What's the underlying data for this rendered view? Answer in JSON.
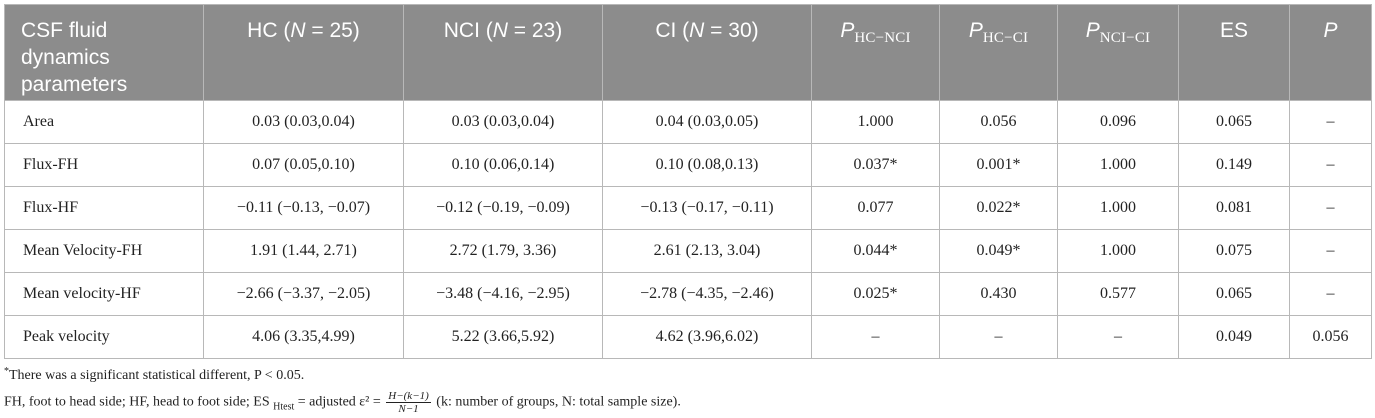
{
  "table": {
    "headers": [
      {
        "key": "param",
        "plain": "CSF fluid dynamics parameters"
      },
      {
        "key": "hc",
        "pre": "HC (",
        "italic": "N",
        "post": " = 25)"
      },
      {
        "key": "nci",
        "pre": "NCI (",
        "italic": "N",
        "post": " = 23)"
      },
      {
        "key": "ci",
        "pre": "CI (",
        "italic": "N",
        "post": " = 30)"
      },
      {
        "key": "p_hc_nci",
        "italic": "P",
        "sub": "HC−NCI"
      },
      {
        "key": "p_hc_ci",
        "italic": "P",
        "sub": "HC−CI"
      },
      {
        "key": "p_nci_ci",
        "italic": "P",
        "sub": "NCI−CI"
      },
      {
        "key": "es",
        "plain": "ES"
      },
      {
        "key": "p",
        "italic": "P"
      }
    ],
    "rows": [
      [
        "Area",
        "0.03 (0.03,0.04)",
        "0.03 (0.03,0.04)",
        "0.04 (0.03,0.05)",
        "1.000",
        "0.056",
        "0.096",
        "0.065",
        "–"
      ],
      [
        "Flux-FH",
        "0.07 (0.05,0.10)",
        "0.10 (0.06,0.14)",
        "0.10 (0.08,0.13)",
        "0.037*",
        "0.001*",
        "1.000",
        "0.149",
        "–"
      ],
      [
        "Flux-HF",
        "−0.11 (−0.13, −0.07)",
        "−0.12 (−0.19, −0.09)",
        "−0.13 (−0.17, −0.11)",
        "0.077",
        "0.022*",
        "1.000",
        "0.081",
        "–"
      ],
      [
        "Mean Velocity-FH",
        "1.91 (1.44, 2.71)",
        "2.72 (1.79, 3.36)",
        "2.61 (2.13, 3.04)",
        "0.044*",
        "0.049*",
        "1.000",
        "0.075",
        "–"
      ],
      [
        "Mean velocity-HF",
        "−2.66 (−3.37, −2.05)",
        "−3.48 (−4.16, −2.95)",
        "−2.78 (−4.35, −2.46)",
        "0.025*",
        "0.430",
        "0.577",
        "0.065",
        "–"
      ],
      [
        "Peak velocity",
        "4.06 (3.35,4.99)",
        "5.22 (3.66,5.92)",
        "4.62 (3.96,6.02)",
        "–",
        "–",
        "–",
        "0.049",
        "0.056"
      ]
    ]
  },
  "footnotes": {
    "line1": {
      "star": "*",
      "text": "There was a significant statistical different, P < 0.05."
    },
    "line2": {
      "pre": "FH, foot to head side; HF, head to foot side; ES ",
      "sub": "Htest",
      "mid": " = adjusted ε² = ",
      "frac_num": "H−(k−1)",
      "frac_den": "N−1",
      "post": " (k: number of groups, N: total sample size)."
    }
  },
  "colors": {
    "header_bg": "#8c8c8c",
    "header_text": "#ffffff",
    "border": "#b8b8b8"
  }
}
